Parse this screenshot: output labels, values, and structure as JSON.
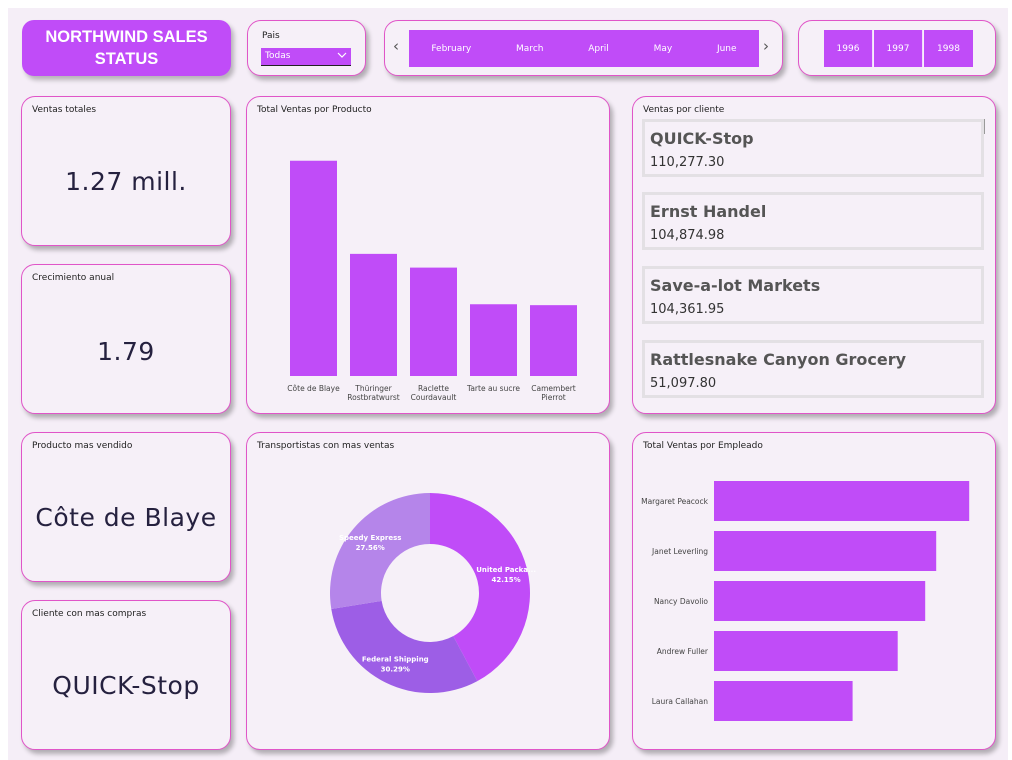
{
  "header": {
    "title": "NORTHWIND SALES STATUS"
  },
  "filter_pais": {
    "label": "Pais",
    "selected": "Todas"
  },
  "months": [
    "February",
    "March",
    "April",
    "May",
    "June"
  ],
  "years": [
    "1996",
    "1997",
    "1998"
  ],
  "kpis": {
    "ventas_totales": {
      "title": "Ventas totales",
      "value": "1.27 mill."
    },
    "crecimiento": {
      "title": "Crecimiento anual",
      "value": "1.79"
    },
    "producto": {
      "title": "Producto mas vendido",
      "value": "Côte de Blaye"
    },
    "cliente": {
      "title": "Cliente con mas compras",
      "value": "QUICK-Stop"
    }
  },
  "ventas_cliente": {
    "title": "Ventas por cliente",
    "items": [
      {
        "name": "QUICK-Stop",
        "value": "110,277.30"
      },
      {
        "name": "Ernst Handel",
        "value": "104,874.98"
      },
      {
        "name": "Save-a-lot Markets",
        "value": "104,361.95"
      },
      {
        "name": "Rattlesnake Canyon Grocery",
        "value": "51,097.80"
      }
    ]
  },
  "titles": {
    "producto_chart": "Total Ventas por Producto",
    "transport_chart": "Transportistas con mas ventas",
    "empleado_chart": "Total Ventas por Empleado"
  },
  "colors": {
    "accent": "#c04cf8",
    "border": "#e055c8",
    "donut": [
      "#c04cf8",
      "#9d5ee6",
      "#b585ea"
    ]
  },
  "chart_data": [
    {
      "id": "productos",
      "type": "bar",
      "categories": [
        [
          "Côte de Blaye"
        ],
        [
          "Thüringer",
          "Rostbratwurst"
        ],
        [
          "Raclette",
          "Courdavault"
        ],
        [
          "Tarte au sucre"
        ],
        [
          "Camembert",
          "Pierrot"
        ]
      ],
      "values": [
        141,
        80,
        71,
        47,
        46.4
      ],
      "ylim": [
        0,
        150
      ]
    },
    {
      "id": "transportistas",
      "type": "pie",
      "slices": [
        {
          "label": "United Packa...",
          "pct": "42.15%",
          "value": 42.15
        },
        {
          "label": "Federal Shipping",
          "pct": "30.29%",
          "value": 30.29
        },
        {
          "label": "Speedy Express",
          "pct": "27.56%",
          "value": 27.56
        }
      ]
    },
    {
      "id": "empleados",
      "type": "bar",
      "orientation": "horizontal",
      "categories": [
        "Margaret Peacock",
        "Janet Leverling",
        "Nancy Davolio",
        "Andrew Fuller",
        "Laura Callahan"
      ],
      "values": [
        232,
        202,
        192,
        167,
        126
      ],
      "xlim": [
        0,
        240
      ]
    }
  ]
}
